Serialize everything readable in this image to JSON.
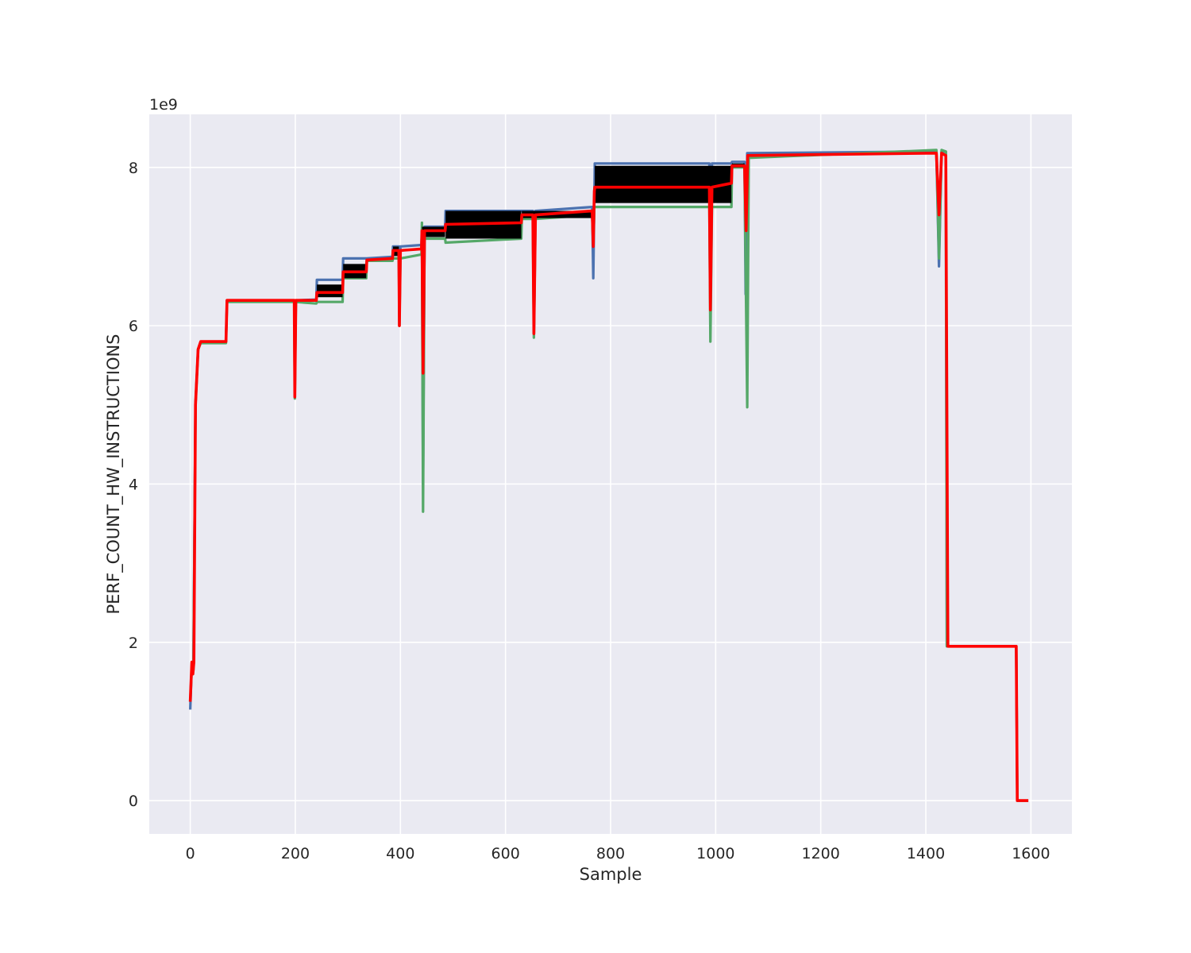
{
  "chart_data": {
    "type": "line",
    "title": "",
    "xlabel": "Sample",
    "ylabel": "PERF_COUNT_HW_INSTRUCTIONS",
    "y_offset_label": "1e9",
    "xlim": [
      -78,
      1678
    ],
    "ylim": [
      -420000000.0,
      8670000000.0
    ],
    "x_ticks": [
      0,
      200,
      400,
      600,
      800,
      1000,
      1200,
      1400,
      1600
    ],
    "x_tick_labels": [
      "0",
      "200",
      "400",
      "600",
      "800",
      "1000",
      "1200",
      "1400",
      "1600"
    ],
    "y_ticks": [
      0,
      2000000000.0,
      4000000000.0,
      6000000000.0,
      8000000000.0
    ],
    "y_tick_labels": [
      "0",
      "2",
      "4",
      "6",
      "8"
    ],
    "grid": true,
    "background": "#eaeaf2",
    "band_series": [
      {
        "color": "#4c72b0",
        "role": "upper",
        "points": [
          [
            0,
            1150000000.0
          ],
          [
            3,
            1750000000.0
          ],
          [
            6,
            1700000000.0
          ],
          [
            10,
            5000000000.0
          ],
          [
            15,
            5700000000.0
          ],
          [
            20,
            5800000000.0
          ],
          [
            68,
            5800000000.0
          ],
          [
            70,
            6320000000.0
          ],
          [
            198,
            6320000000.0
          ],
          [
            199,
            5150000000.0
          ],
          [
            201,
            6320000000.0
          ],
          [
            240,
            6330000000.0
          ],
          [
            241,
            6580000000.0
          ],
          [
            290,
            6580000000.0
          ],
          [
            291,
            6850000000.0
          ],
          [
            335,
            6850000000.0
          ],
          [
            336,
            6850000000.0
          ],
          [
            385,
            6870000000.0
          ],
          [
            386,
            7000000000.0
          ],
          [
            397,
            7000000000.0
          ],
          [
            398,
            6000000000.0
          ],
          [
            400,
            7000000000.0
          ],
          [
            440,
            7020000000.0
          ],
          [
            441,
            7200000000.0
          ],
          [
            443,
            4000000000.0
          ],
          [
            446,
            7250000000.0
          ],
          [
            485,
            7250000000.0
          ],
          [
            486,
            7450000000.0
          ],
          [
            630,
            7450000000.0
          ],
          [
            631,
            7450000000.0
          ],
          [
            652,
            7450000000.0
          ],
          [
            654,
            5900000000.0
          ],
          [
            657,
            7450000000.0
          ],
          [
            765,
            7500000000.0
          ],
          [
            767,
            6600000000.0
          ],
          [
            769,
            7600000000.0
          ],
          [
            770,
            8050000000.0
          ],
          [
            988,
            8050000000.0
          ],
          [
            990,
            6300000000.0
          ],
          [
            993,
            8050000000.0
          ],
          [
            1030,
            8050000000.0
          ],
          [
            1031,
            8070000000.0
          ],
          [
            1055,
            8070000000.0
          ],
          [
            1057,
            6400000000.0
          ],
          [
            1060,
            8180000000.0
          ],
          [
            1420,
            8200000000.0
          ],
          [
            1425,
            6750000000.0
          ],
          [
            1430,
            8200000000.0
          ],
          [
            1438,
            8200000000.0
          ],
          [
            1440,
            1950000000.0
          ],
          [
            1572,
            1950000000.0
          ],
          [
            1574,
            0
          ],
          [
            1595,
            0
          ]
        ]
      },
      {
        "color": "#55a868",
        "role": "lower",
        "points": [
          [
            0,
            1250000000.0
          ],
          [
            3,
            1700000000.0
          ],
          [
            6,
            1650000000.0
          ],
          [
            10,
            5000000000.0
          ],
          [
            15,
            5700000000.0
          ],
          [
            20,
            5780000000.0
          ],
          [
            68,
            5780000000.0
          ],
          [
            70,
            6300000000.0
          ],
          [
            198,
            6300000000.0
          ],
          [
            199,
            5080000000.0
          ],
          [
            201,
            6300000000.0
          ],
          [
            240,
            6280000000.0
          ],
          [
            241,
            6300000000.0
          ],
          [
            290,
            6300000000.0
          ],
          [
            291,
            6600000000.0
          ],
          [
            335,
            6600000000.0
          ],
          [
            336,
            6820000000.0
          ],
          [
            385,
            6820000000.0
          ],
          [
            386,
            6850000000.0
          ],
          [
            397,
            6850000000.0
          ],
          [
            398,
            6000000000.0
          ],
          [
            400,
            6850000000.0
          ],
          [
            440,
            6900000000.0
          ],
          [
            441,
            7300000000.0
          ],
          [
            443,
            3650000000.0
          ],
          [
            446,
            7100000000.0
          ],
          [
            485,
            7100000000.0
          ],
          [
            486,
            7050000000.0
          ],
          [
            630,
            7100000000.0
          ],
          [
            631,
            7350000000.0
          ],
          [
            652,
            7350000000.0
          ],
          [
            654,
            5850000000.0
          ],
          [
            657,
            7350000000.0
          ],
          [
            765,
            7400000000.0
          ],
          [
            767,
            7000000000.0
          ],
          [
            769,
            7500000000.0
          ],
          [
            770,
            7500000000.0
          ],
          [
            988,
            7500000000.0
          ],
          [
            990,
            5800000000.0
          ],
          [
            993,
            7500000000.0
          ],
          [
            1030,
            7500000000.0
          ],
          [
            1031,
            8000000000.0
          ],
          [
            1055,
            8000000000.0
          ],
          [
            1060,
            4970000000.0
          ],
          [
            1063,
            8120000000.0
          ],
          [
            1420,
            8220000000.0
          ],
          [
            1425,
            6850000000.0
          ],
          [
            1430,
            8220000000.0
          ],
          [
            1438,
            8200000000.0
          ],
          [
            1440,
            1950000000.0
          ],
          [
            1572,
            1950000000.0
          ],
          [
            1574,
            0
          ],
          [
            1595,
            0
          ]
        ]
      }
    ],
    "series": [
      {
        "color": "#ff0000",
        "role": "mean",
        "points": [
          [
            0,
            1250000000.0
          ],
          [
            3,
            1750000000.0
          ],
          [
            5,
            1600000000.0
          ],
          [
            7,
            1750000000.0
          ],
          [
            10,
            5000000000.0
          ],
          [
            15,
            5700000000.0
          ],
          [
            20,
            5800000000.0
          ],
          [
            68,
            5800000000.0
          ],
          [
            70,
            6320000000.0
          ],
          [
            198,
            6320000000.0
          ],
          [
            199,
            5100000000.0
          ],
          [
            201,
            6320000000.0
          ],
          [
            240,
            6320000000.0
          ],
          [
            241,
            6420000000.0
          ],
          [
            290,
            6420000000.0
          ],
          [
            291,
            6680000000.0
          ],
          [
            335,
            6680000000.0
          ],
          [
            336,
            6830000000.0
          ],
          [
            385,
            6850000000.0
          ],
          [
            386,
            6950000000.0
          ],
          [
            397,
            6950000000.0
          ],
          [
            398,
            6000000000.0
          ],
          [
            400,
            6950000000.0
          ],
          [
            440,
            6970000000.0
          ],
          [
            441,
            7200000000.0
          ],
          [
            443,
            5400000000.0
          ],
          [
            446,
            7200000000.0
          ],
          [
            485,
            7200000000.0
          ],
          [
            486,
            7280000000.0
          ],
          [
            630,
            7300000000.0
          ],
          [
            631,
            7400000000.0
          ],
          [
            652,
            7400000000.0
          ],
          [
            654,
            5900000000.0
          ],
          [
            657,
            7400000000.0
          ],
          [
            765,
            7450000000.0
          ],
          [
            767,
            7000000000.0
          ],
          [
            769,
            7700000000.0
          ],
          [
            770,
            7750000000.0
          ],
          [
            988,
            7750000000.0
          ],
          [
            990,
            6200000000.0
          ],
          [
            993,
            7750000000.0
          ],
          [
            1030,
            7800000000.0
          ],
          [
            1031,
            8020000000.0
          ],
          [
            1055,
            8020000000.0
          ],
          [
            1058,
            7200000000.0
          ],
          [
            1061,
            8150000000.0
          ],
          [
            1420,
            8180000000.0
          ],
          [
            1425,
            7400000000.0
          ],
          [
            1430,
            8180000000.0
          ],
          [
            1438,
            8150000000.0
          ],
          [
            1440,
            5100000000.0
          ],
          [
            1442,
            1950000000.0
          ],
          [
            1572,
            1950000000.0
          ],
          [
            1574,
            0
          ],
          [
            1595,
            0
          ]
        ]
      }
    ],
    "bands": [
      {
        "color": "#000000",
        "segments": [
          [
            241,
            290,
            6360000000.0,
            6520000000.0
          ],
          [
            291,
            335,
            6600000000.0,
            6780000000.0
          ],
          [
            386,
            397,
            6880000000.0,
            7000000000.0
          ],
          [
            441,
            485,
            7120000000.0,
            7250000000.0
          ],
          [
            486,
            630,
            7100000000.0,
            7450000000.0
          ],
          [
            631,
            765,
            7360000000.0,
            7450000000.0
          ],
          [
            770,
            1030,
            7550000000.0,
            8020000000.0
          ],
          [
            1031,
            1055,
            8000000000.0,
            8050000000.0
          ]
        ]
      }
    ]
  }
}
